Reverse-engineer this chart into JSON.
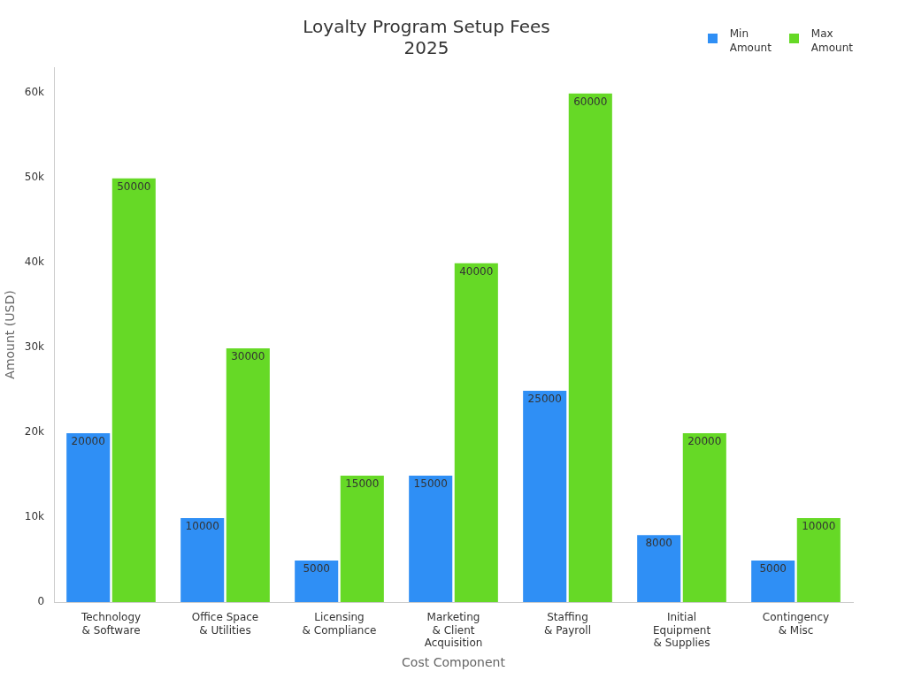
{
  "chart_data": {
    "type": "bar",
    "title": "Loyalty Program Setup Fees\n2025",
    "xlabel": "Cost Component",
    "ylabel": "Amount (USD)",
    "categories": [
      "Technology\n& Software",
      "Office Space\n& Utilities",
      "Licensing\n& Compliance",
      "Marketing\n& Client\nAcquisition",
      "Staffing\n& Payroll",
      "Initial\nEquipment\n& Supplies",
      "Contingency\n& Misc"
    ],
    "series": [
      {
        "name": "Min\nAmount",
        "color": "#2f8ff5",
        "values": [
          20000,
          10000,
          5000,
          15000,
          25000,
          8000,
          5000
        ]
      },
      {
        "name": "Max\nAmount",
        "color": "#66d926",
        "values": [
          50000,
          30000,
          15000,
          40000,
          60000,
          20000,
          10000
        ]
      }
    ],
    "ylim": [
      0,
      63000
    ],
    "yticks": [
      0,
      {
        "value": 10000,
        "label": "10k"
      },
      {
        "value": 20000,
        "label": "20k"
      },
      {
        "value": 30000,
        "label": "30k"
      },
      {
        "value": 40000,
        "label": "40k"
      },
      {
        "value": 50000,
        "label": "50k"
      },
      {
        "value": 60000,
        "label": "60k"
      }
    ],
    "grid": false,
    "legend": "top right",
    "data_labels": true
  }
}
